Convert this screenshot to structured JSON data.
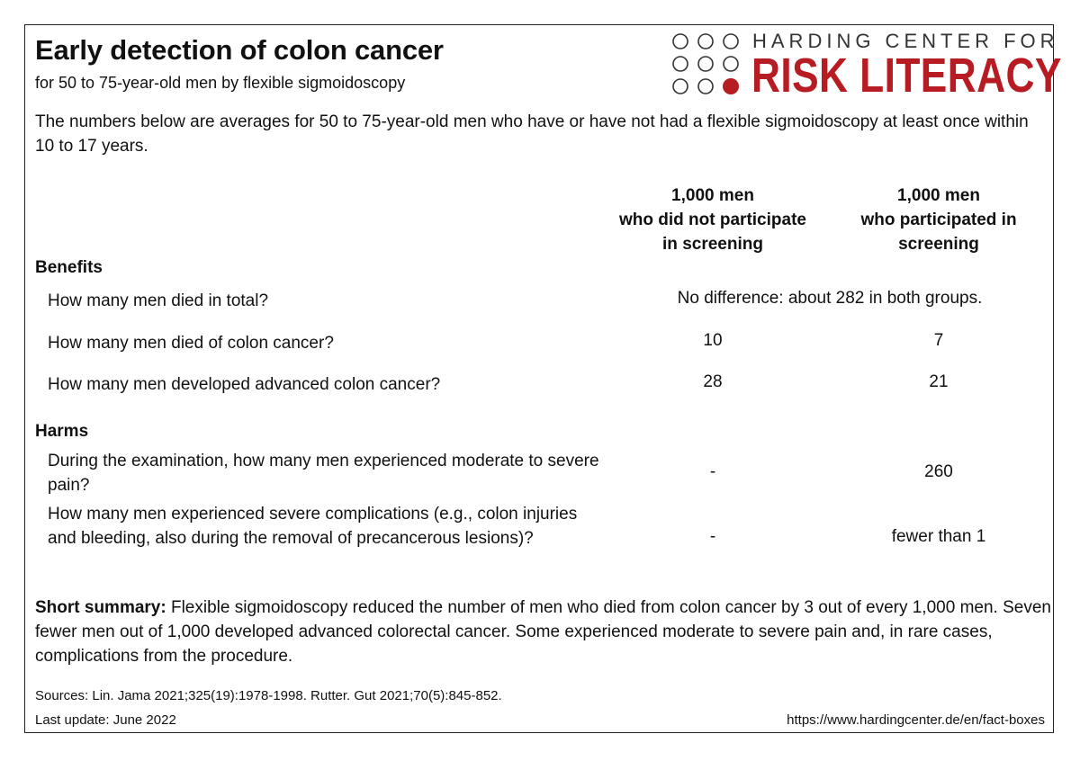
{
  "header": {
    "title": "Early detection of colon cancer",
    "subtitle": "for 50 to 75-year-old men by flexible sigmoidoscopy"
  },
  "logo": {
    "line1": "HARDING CENTER FOR",
    "line2": "RISK LITERACY",
    "brand_color": "#b81c23"
  },
  "intro": "The numbers below are averages for 50 to 75-year-old men who have or have not had a flexible sigmoidoscopy at least once within 10 to 17 years.",
  "columns": {
    "col1": [
      "1,000 men",
      "who did not participate",
      "in screening"
    ],
    "col2": [
      "1,000 men",
      "who participated in",
      "screening"
    ]
  },
  "benefits": {
    "heading": "Benefits",
    "rows": [
      {
        "question": "How many men died in total?",
        "merged": "No difference: about 282 in both groups."
      },
      {
        "question": "How many men died of colon cancer?",
        "col1": "10",
        "col2": "7"
      },
      {
        "question": "How many men developed advanced colon cancer?",
        "col1": "28",
        "col2": "21"
      }
    ]
  },
  "harms": {
    "heading": "Harms",
    "rows": [
      {
        "question": "During the examination, how many men experienced moderate to severe pain?",
        "col1": "-",
        "col2": "260"
      },
      {
        "question": "How many men experienced severe complications (e.g., colon injuries and bleeding, also during the removal of precancerous lesions)?",
        "col1": "-",
        "col2": "fewer than 1"
      }
    ]
  },
  "summary": {
    "label": "Short summary:",
    "text": " Flexible sigmoidoscopy reduced the number of men who died from colon cancer by 3 out of every 1,000 men. Seven fewer men out of 1,000 developed advanced colorectal cancer. Some experienced moderate to severe pain and, in rare cases, complications from the procedure."
  },
  "footer": {
    "sources": "Sources: Lin. Jama 2021;325(19):1978-1998. Rutter. Gut 2021;70(5):845-852.",
    "last_update": "Last update: June 2022",
    "url": "https://www.hardingcenter.de/en/fact-boxes"
  }
}
